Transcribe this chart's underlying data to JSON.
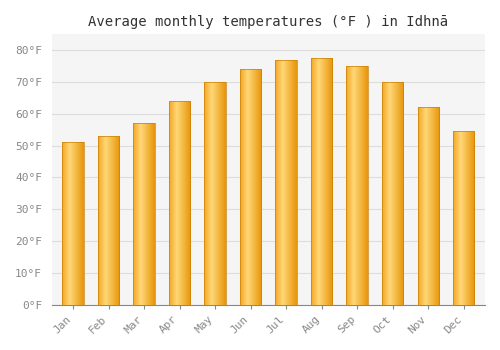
{
  "title": "Average monthly temperatures (°F ) in Idhnā",
  "months": [
    "Jan",
    "Feb",
    "Mar",
    "Apr",
    "May",
    "Jun",
    "Jul",
    "Aug",
    "Sep",
    "Oct",
    "Nov",
    "Dec"
  ],
  "values": [
    51,
    53,
    57,
    64,
    70,
    74,
    77,
    77.5,
    75,
    70,
    62,
    54.5
  ],
  "bar_color_main": "#F5A623",
  "bar_color_light": "#FFD878",
  "bar_color_edge": "#E8950A",
  "ylim": [
    0,
    85
  ],
  "yticks": [
    0,
    10,
    20,
    30,
    40,
    50,
    60,
    70,
    80
  ],
  "ytick_labels": [
    "0°F",
    "10°F",
    "20°F",
    "30°F",
    "40°F",
    "50°F",
    "60°F",
    "70°F",
    "80°F"
  ],
  "background_color": "#FFFFFF",
  "plot_bg_color": "#F5F5F5",
  "grid_color": "#DDDDDD",
  "title_fontsize": 10,
  "tick_fontsize": 8,
  "font_family": "monospace"
}
